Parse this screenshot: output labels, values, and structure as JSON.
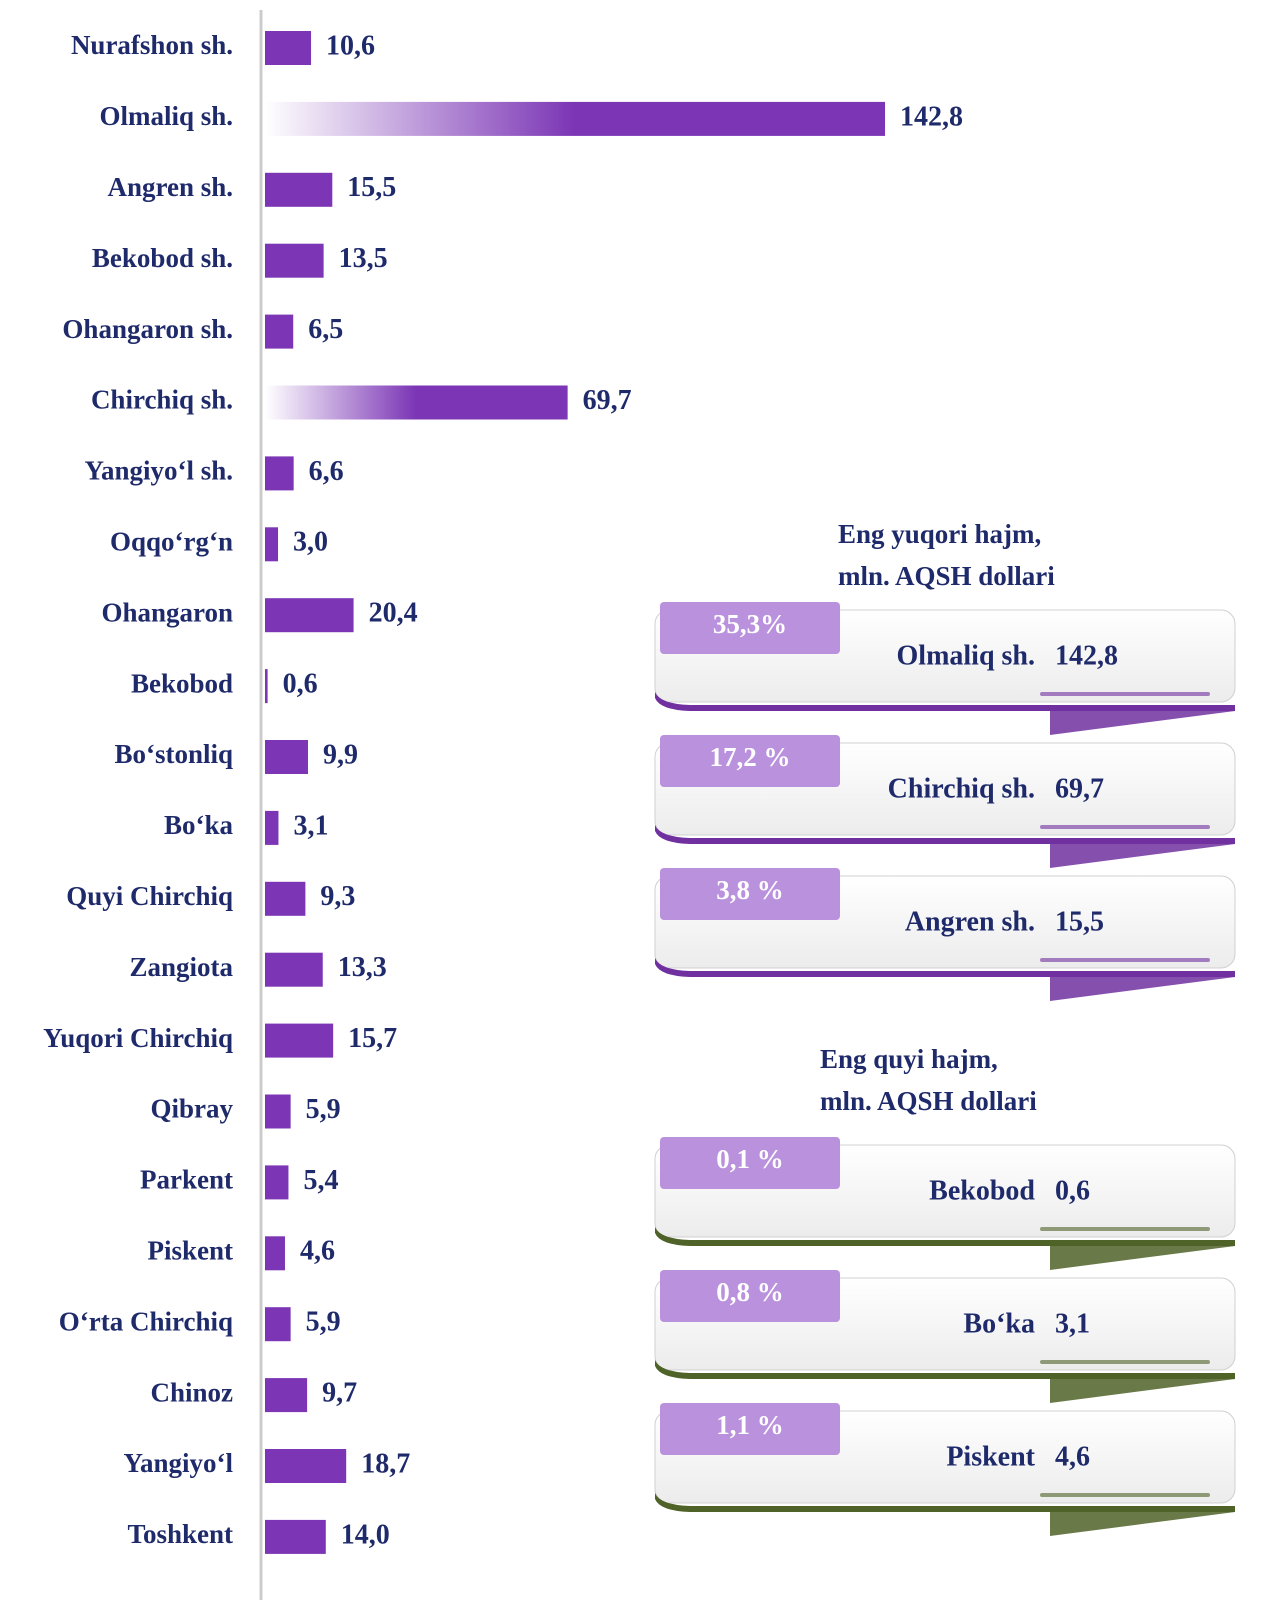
{
  "chart_data": {
    "type": "barh",
    "categories": [
      "Nurafshon sh.",
      "Olmaliq sh.",
      "Angren sh.",
      "Bekobod sh.",
      "Ohangaron sh.",
      "Chirchiq sh.",
      "Yangiyo‘l sh.",
      "Oqqo‘rg‘n",
      "Ohangaron",
      "Bekobod",
      "Bo‘stonliq",
      "Bo‘ka",
      "Quyi Chirchiq",
      "Zangiota",
      "Yuqori Chirchiq",
      "Qibray",
      "Parkent",
      "Piskent",
      "O‘rta Chirchiq",
      "Chinoz",
      "Yangiyo‘l",
      "Toshkent"
    ],
    "values": [
      10.6,
      142.8,
      15.5,
      13.5,
      6.5,
      69.7,
      6.6,
      3.0,
      20.4,
      0.6,
      9.9,
      3.1,
      9.3,
      13.3,
      15.7,
      5.9,
      5.4,
      4.6,
      5.9,
      9.7,
      18.7,
      14.0
    ],
    "value_labels": [
      "10,6",
      "142,8",
      "15,5",
      "13,5",
      "6,5",
      "69,7",
      "6,6",
      "3,0",
      "20,4",
      "0,6",
      "9,9",
      "3,1",
      "9,3",
      "13,3",
      "15,7",
      "5,9",
      "5,4",
      "4,6",
      "5,9",
      "9,7",
      "18,7",
      "14,0"
    ],
    "color": "#7b35b5"
  },
  "panels": [
    {
      "title": [
        "Eng yuqori hajm,",
        "mln. AQSH dollari"
      ],
      "accent": "#7030a0",
      "items": [
        {
          "share": "35,3%",
          "name": "Olmaliq sh.",
          "value": "142,8"
        },
        {
          "share": "17,2 %",
          "name": "Chirchiq sh.",
          "value": "69,7"
        },
        {
          "share": "3,8 %",
          "name": "Angren sh.",
          "value": "15,5"
        }
      ]
    },
    {
      "title": [
        "Eng quyi hajm,",
        "mln. AQSH dollari"
      ],
      "accent": "#4f6228",
      "items": [
        {
          "share": "0,1 %",
          "name": "Bekobod",
          "value": "0,6"
        },
        {
          "share": "0,8 %",
          "name": "Bo‘ka",
          "value": "3,1"
        },
        {
          "share": "1,1 %",
          "name": "Piskent",
          "value": "4,6"
        }
      ]
    }
  ]
}
